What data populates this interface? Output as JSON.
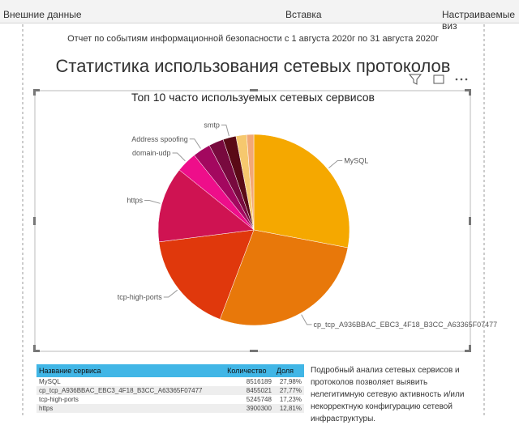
{
  "ribbon": {
    "groups": [
      "Внешние данные",
      "Вставка",
      "Настраиваемые виз"
    ]
  },
  "report": {
    "subtitle": "Отчет по событиям информационной безопасности с 1 августа 2020г по 31 августа 2020г",
    "title": "Статистика использования сетевых протоколов"
  },
  "chart_data": {
    "type": "pie",
    "title": "Топ 10 часто используемых сетевых сервисов",
    "categories": [
      "MySQL",
      "cp_tcp_A936BBAC_EBC3_4F18_B3CC_A63365F07477",
      "tcp-high-ports",
      "https",
      "domain-udp",
      "Address spoofing",
      null,
      "smtp",
      null,
      null
    ],
    "values": [
      27.98,
      27.77,
      17.23,
      12.81,
      3.5,
      3.0,
      2.5,
      2.2,
      1.8,
      1.2
    ],
    "colors": [
      "#f5a800",
      "#e8780a",
      "#e0380c",
      "#cf1352",
      "#ee0e8a",
      "#a3085f",
      "#780a3e",
      "#5a0a16",
      "#f6c86e",
      "#f2a876"
    ]
  },
  "table": {
    "header": [
      "Название сервиса",
      "Количество",
      "Доля"
    ],
    "rows": [
      [
        "MySQL",
        "8516189",
        "27,98%"
      ],
      [
        "cp_tcp_A936BBAC_EBC3_4F18_B3CC_A63365F07477",
        "8455021",
        "27,77%"
      ],
      [
        "tcp-high-ports",
        "5245748",
        "17,23%"
      ],
      [
        "https",
        "3900300",
        "12,81%"
      ]
    ]
  },
  "note": "Подробный анализ сетевых сервисов и протоколов позволяет выявить нелегитимную сетевую активность и/или некорректную конфигурацию сетевой инфраструктуры."
}
